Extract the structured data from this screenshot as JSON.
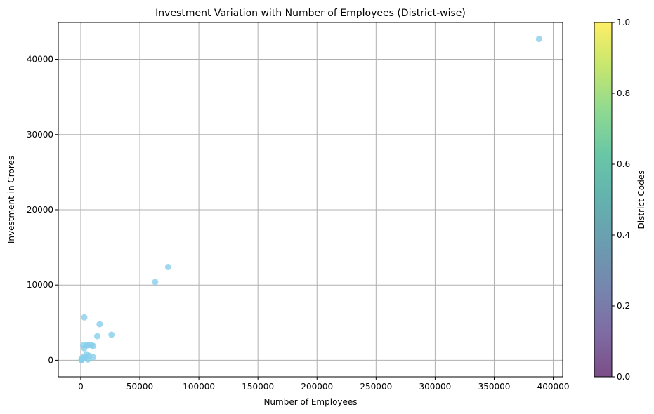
{
  "chart_data": {
    "type": "scatter",
    "title": "Investment Variation with Number of Employees (District-wise)",
    "xlabel": "Number of Employees",
    "ylabel": "Investment in Crores",
    "xlim": [
      -19000,
      408000
    ],
    "ylim": [
      -2200,
      44900
    ],
    "grid": true,
    "point_color": "#87ceeb",
    "x_ticks": [
      0,
      50000,
      100000,
      150000,
      200000,
      250000,
      300000,
      350000,
      400000
    ],
    "x_tick_labels": [
      "0",
      "50000",
      "100000",
      "150000",
      "200000",
      "250000",
      "300000",
      "350000",
      "400000"
    ],
    "y_ticks": [
      0,
      10000,
      20000,
      30000,
      40000
    ],
    "y_tick_labels": [
      "0",
      "10000",
      "20000",
      "30000",
      "40000"
    ],
    "points": [
      {
        "x": 388000,
        "y": 42700
      },
      {
        "x": 74000,
        "y": 12400
      },
      {
        "x": 63000,
        "y": 10400
      },
      {
        "x": 3000,
        "y": 5700
      },
      {
        "x": 16000,
        "y": 4800
      },
      {
        "x": 26000,
        "y": 3400
      },
      {
        "x": 14000,
        "y": 3200
      },
      {
        "x": 2000,
        "y": 2000
      },
      {
        "x": 5000,
        "y": 2000
      },
      {
        "x": 6500,
        "y": 2000
      },
      {
        "x": 9000,
        "y": 2000
      },
      {
        "x": 10500,
        "y": 1900
      },
      {
        "x": 3000,
        "y": 1600
      },
      {
        "x": 5000,
        "y": 800
      },
      {
        "x": 7000,
        "y": 600
      },
      {
        "x": 2500,
        "y": 500
      },
      {
        "x": 10500,
        "y": 400
      },
      {
        "x": 1500,
        "y": 300
      },
      {
        "x": 3500,
        "y": 300
      },
      {
        "x": 6000,
        "y": 100
      },
      {
        "x": 1000,
        "y": 150
      },
      {
        "x": 500,
        "y": 50
      },
      {
        "x": 800,
        "y": 20
      }
    ],
    "colorbar": {
      "label": "District Codes",
      "range": [
        0,
        1
      ],
      "ticks": [
        0,
        0.2,
        0.4,
        0.6,
        0.8,
        1.0
      ],
      "tick_labels": [
        "0.0",
        "0.2",
        "0.4",
        "0.6",
        "0.8",
        "1.0"
      ],
      "colormap": "viridis",
      "alpha": 0.7
    }
  }
}
